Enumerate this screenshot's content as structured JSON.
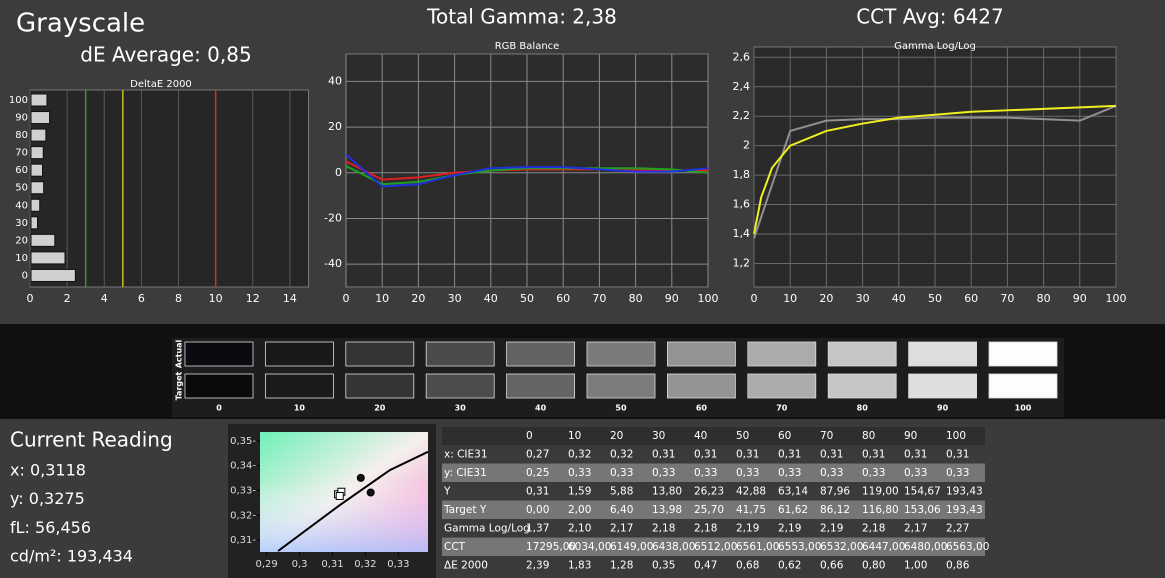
{
  "header": {
    "title": "Grayscale",
    "de_average": "dE Average: 0,85",
    "total_gamma": "Total Gamma: 2,38",
    "cct_avg": "CCT Avg: 6427"
  },
  "chart_data": [
    {
      "type": "bar",
      "orientation": "horizontal",
      "title": "DeltaE 2000",
      "categories": [
        "100",
        "90",
        "80",
        "70",
        "60",
        "50",
        "40",
        "30",
        "20",
        "10",
        "0"
      ],
      "values": [
        0.86,
        1.0,
        0.8,
        0.66,
        0.62,
        0.68,
        0.47,
        0.35,
        1.28,
        1.83,
        2.39
      ],
      "color": "#d0d0d0",
      "xlim": [
        0,
        15
      ],
      "xticks": [
        0,
        2,
        4,
        6,
        8,
        10,
        12,
        14
      ],
      "grid": true,
      "thresholds": [
        {
          "value": 3,
          "color": "#2e9a2e"
        },
        {
          "value": 5,
          "color": "#c8c020"
        },
        {
          "value": 10,
          "color": "#d03030"
        }
      ]
    },
    {
      "type": "line",
      "title": "RGB Balance",
      "x": [
        0,
        10,
        20,
        30,
        40,
        50,
        60,
        70,
        80,
        90,
        100
      ],
      "series": [
        {
          "color": "#e02020",
          "values": [
            5,
            -3,
            -2,
            0,
            1,
            1.5,
            1.5,
            1.5,
            1,
            1,
            1
          ]
        },
        {
          "color": "#20a020",
          "values": [
            3,
            -5,
            -4,
            -1,
            1,
            2,
            2,
            2,
            2,
            1.5,
            0
          ]
        },
        {
          "color": "#2030e0",
          "values": [
            8,
            -6,
            -5,
            -1,
            2,
            2.5,
            2.5,
            1.5,
            0.5,
            0.5,
            2
          ]
        }
      ],
      "xlim": [
        0,
        100
      ],
      "xticks": [
        0,
        10,
        20,
        30,
        40,
        50,
        60,
        70,
        80,
        90,
        100
      ],
      "ylim": [
        -50,
        52
      ],
      "yticks": [
        -40,
        -20,
        0,
        20,
        40
      ],
      "grid": true
    },
    {
      "type": "line",
      "title": "Gamma Log/Log",
      "series": [
        {
          "color": "#909090",
          "x": [
            0,
            10,
            20,
            30,
            40,
            50,
            60,
            70,
            80,
            90,
            100
          ],
          "values": [
            1.37,
            2.1,
            2.17,
            2.18,
            2.18,
            2.19,
            2.19,
            2.19,
            2.18,
            2.17,
            2.27
          ]
        },
        {
          "color": "#f0f020",
          "x": [
            0,
            2,
            5,
            10,
            20,
            30,
            40,
            50,
            60,
            70,
            80,
            90,
            100
          ],
          "values": [
            1.4,
            1.65,
            1.85,
            2.0,
            2.1,
            2.15,
            2.19,
            2.21,
            2.23,
            2.24,
            2.25,
            2.26,
            2.27
          ]
        }
      ],
      "xlim": [
        0,
        100
      ],
      "xticks": [
        0,
        10,
        20,
        30,
        40,
        50,
        60,
        70,
        80,
        90,
        100
      ],
      "ylim": [
        1.04,
        2.67
      ],
      "yticks": [
        {
          "value": 1.2,
          "label": "1,2"
        },
        {
          "value": 1.4,
          "label": "1,4"
        },
        {
          "value": 1.6,
          "label": "1,6"
        },
        {
          "value": 1.8,
          "label": "1,8"
        },
        {
          "value": 2,
          "label": "2"
        },
        {
          "value": 2.2,
          "label": "2,2"
        },
        {
          "value": 2.4,
          "label": "2,4"
        },
        {
          "value": 2.6,
          "label": "2,6"
        }
      ],
      "grid": true
    },
    {
      "type": "scatter",
      "series": [
        {
          "marker": "line",
          "color": "#000000",
          "x": [
            0.2935,
            0.3122,
            0.3275,
            0.339
          ],
          "values": [
            0.3056,
            0.3241,
            0.3383,
            0.3456
          ]
        },
        {
          "marker": "square",
          "color": "#ffffff",
          "x": [
            0.3117,
            0.3127,
            0.3122
          ],
          "values": [
            0.3285,
            0.3295,
            0.3278
          ]
        },
        {
          "marker": "dot",
          "color": "#111111",
          "x": [
            0.3186,
            0.3216
          ],
          "values": [
            0.3351,
            0.3292
          ]
        }
      ],
      "xlim": [
        0.288,
        0.339
      ],
      "xticks": [
        {
          "value": 0.29,
          "label": "0,29"
        },
        {
          "value": 0.3,
          "label": "0,3"
        },
        {
          "value": 0.31,
          "label": "0,31"
        },
        {
          "value": 0.32,
          "label": "0,32"
        },
        {
          "value": 0.33,
          "label": "0,33"
        }
      ],
      "ylim": [
        0.3052,
        0.3536
      ],
      "yticks": [
        {
          "value": 0.31,
          "label": "0,31-"
        },
        {
          "value": 0.32,
          "label": "0,32-"
        },
        {
          "value": 0.33,
          "label": "0,33-"
        },
        {
          "value": 0.34,
          "label": "0,34-"
        },
        {
          "value": 0.35,
          "label": "0,35-"
        }
      ]
    }
  ],
  "swatches": {
    "row_labels": [
      "Actual",
      "Target"
    ],
    "columns": [
      "0",
      "10",
      "20",
      "30",
      "40",
      "50",
      "60",
      "70",
      "80",
      "90",
      "100"
    ],
    "actual_colors": [
      "#0a0a10",
      "#1a1818",
      "#343434",
      "#4b4b4b",
      "#636363",
      "#7b7b7b",
      "#939393",
      "#ababab",
      "#c5c5c5",
      "#dddddd",
      "#fdfdfd"
    ],
    "target_colors": [
      "#0a0a0a",
      "#1b1b1b",
      "#353535",
      "#4c4c4c",
      "#646464",
      "#7c7c7c",
      "#949494",
      "#acacac",
      "#c6c6c6",
      "#dedede",
      "#fdfdfd"
    ]
  },
  "current_reading": {
    "title": "Current Reading",
    "lines": [
      "x: 0,3118",
      "y: 0,3275",
      "fL: 56,456",
      "cd/m²: 193,434"
    ]
  },
  "table": {
    "columns": [
      "0",
      "10",
      "20",
      "30",
      "40",
      "50",
      "60",
      "70",
      "80",
      "90",
      "100"
    ],
    "rows": [
      {
        "label": "x: CIE31",
        "values": [
          "0,27",
          "0,32",
          "0,32",
          "0,31",
          "0,31",
          "0,31",
          "0,31",
          "0,31",
          "0,31",
          "0,31",
          "0,31"
        ]
      },
      {
        "label": "y: CIE31",
        "values": [
          "0,25",
          "0,33",
          "0,33",
          "0,33",
          "0,33",
          "0,33",
          "0,33",
          "0,33",
          "0,33",
          "0,33",
          "0,33"
        ]
      },
      {
        "label": "Y",
        "values": [
          "0,31",
          "1,59",
          "5,88",
          "13,80",
          "26,23",
          "42,88",
          "63,14",
          "87,96",
          "119,00",
          "154,67",
          "193,43"
        ]
      },
      {
        "label": "Target Y",
        "values": [
          "0,00",
          "2,00",
          "6,40",
          "13,98",
          "25,70",
          "41,75",
          "61,62",
          "86,12",
          "116,80",
          "153,06",
          "193,43"
        ]
      },
      {
        "label": "Gamma Log/Log",
        "values": [
          "1,37",
          "2,10",
          "2,17",
          "2,18",
          "2,18",
          "2,19",
          "2,19",
          "2,19",
          "2,18",
          "2,17",
          "2,27"
        ]
      },
      {
        "label": "CCT",
        "values": [
          "17295,00",
          "6034,00",
          "6149,00",
          "6438,00",
          "6512,00",
          "6561,00",
          "6553,00",
          "6532,00",
          "6447,00",
          "6480,00",
          "6563,00"
        ]
      },
      {
        "label": "ΔE 2000",
        "values": [
          "2,39",
          "1,83",
          "1,28",
          "0,35",
          "0,47",
          "0,68",
          "0,62",
          "0,66",
          "0,80",
          "1,00",
          "0,86"
        ]
      }
    ]
  }
}
